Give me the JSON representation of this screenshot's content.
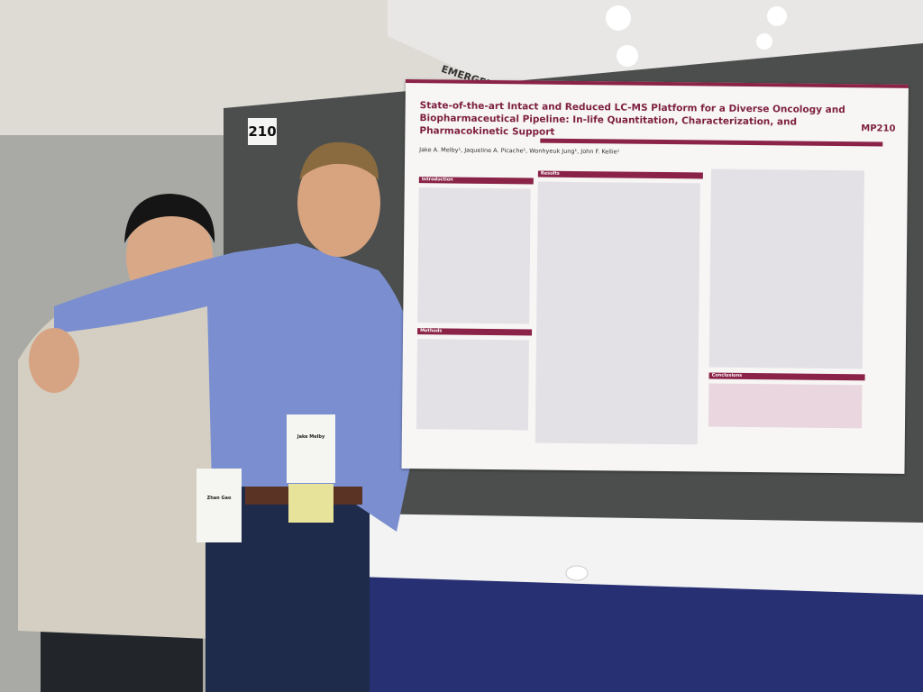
{
  "booth_number": "210",
  "sign": "EMERGEN",
  "poster": {
    "title": "State-of-the-art Intact and Reduced LC-MS Platform for a Diverse Oncology and Biopharmaceutical Pipeline: In-life Quantitation, Characterization, and Pharmacokinetic Support",
    "code": "MP210",
    "authors": "Jake A. Melby¹, Jaqueline A. Picache¹, Wonhyeuk Jung¹, John F. Kellie¹",
    "sections": [
      "Introduction",
      "Methods",
      "Results",
      "Conclusions"
    ]
  },
  "badges": [
    "Jake Melby",
    "Zhan Gao"
  ]
}
